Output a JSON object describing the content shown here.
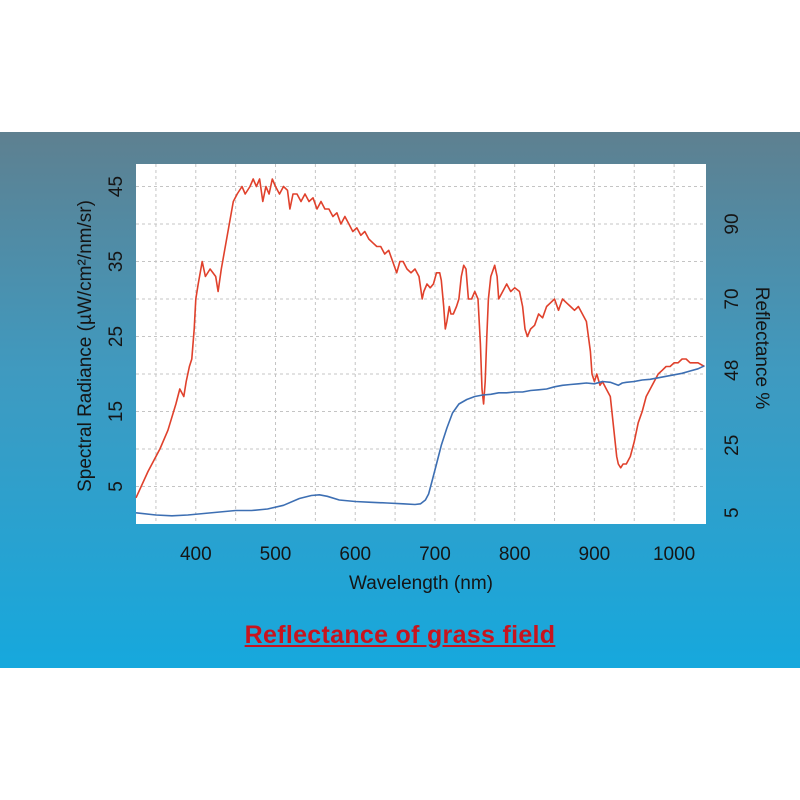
{
  "caption": "Reflectance of grass field",
  "colors": {
    "radiance": "#e0412c",
    "reflectance": "#3d6fb3",
    "caption": "#c8141e"
  },
  "chart_data": {
    "type": "line",
    "xlabel": "Wavelength (nm)",
    "ylabel": "Spectral Radiance (µW/cm²/nm/sr)",
    "y2label": "Reflectance %",
    "xlim": [
      325,
      1040
    ],
    "ylim": [
      0,
      48
    ],
    "x_ticks": [
      400,
      500,
      600,
      700,
      800,
      900,
      1000
    ],
    "y_ticks": [
      5,
      15,
      25,
      35,
      45
    ],
    "y2_ticks": [
      {
        "label": "5",
        "at": 1.5
      },
      {
        "label": "25",
        "at": 10.5
      },
      {
        "label": "48",
        "at": 20.5
      },
      {
        "label": "70",
        "at": 30
      },
      {
        "label": "90",
        "at": 40
      }
    ],
    "grid": true,
    "series": [
      {
        "axis": "left",
        "points": [
          [
            325,
            3.5
          ],
          [
            340,
            7
          ],
          [
            355,
            10
          ],
          [
            365,
            12.5
          ],
          [
            375,
            16
          ],
          [
            380,
            18
          ],
          [
            385,
            17
          ],
          [
            388,
            19
          ],
          [
            392,
            21
          ],
          [
            395,
            22
          ],
          [
            398,
            26
          ],
          [
            400,
            30
          ],
          [
            403,
            32
          ],
          [
            408,
            35
          ],
          [
            412,
            33
          ],
          [
            418,
            34
          ],
          [
            425,
            33
          ],
          [
            428,
            31
          ],
          [
            432,
            34
          ],
          [
            437,
            37
          ],
          [
            442,
            40
          ],
          [
            447,
            43
          ],
          [
            452,
            44
          ],
          [
            458,
            45
          ],
          [
            462,
            44
          ],
          [
            468,
            45
          ],
          [
            472,
            46
          ],
          [
            476,
            45
          ],
          [
            480,
            46
          ],
          [
            484,
            43
          ],
          [
            488,
            45
          ],
          [
            492,
            44
          ],
          [
            496,
            46
          ],
          [
            500,
            45
          ],
          [
            505,
            44
          ],
          [
            510,
            45
          ],
          [
            515,
            44.5
          ],
          [
            518,
            42
          ],
          [
            522,
            44
          ],
          [
            527,
            44
          ],
          [
            532,
            43
          ],
          [
            537,
            44
          ],
          [
            542,
            43
          ],
          [
            547,
            43.5
          ],
          [
            552,
            42
          ],
          [
            557,
            43
          ],
          [
            562,
            42
          ],
          [
            567,
            42
          ],
          [
            572,
            41
          ],
          [
            577,
            41.5
          ],
          [
            582,
            40
          ],
          [
            587,
            41
          ],
          [
            592,
            40
          ],
          [
            597,
            39
          ],
          [
            602,
            39.5
          ],
          [
            607,
            38.5
          ],
          [
            612,
            39
          ],
          [
            617,
            38
          ],
          [
            622,
            37.5
          ],
          [
            627,
            37
          ],
          [
            632,
            37
          ],
          [
            637,
            36
          ],
          [
            642,
            36.5
          ],
          [
            647,
            35
          ],
          [
            652,
            33.5
          ],
          [
            656,
            35
          ],
          [
            660,
            35
          ],
          [
            665,
            34
          ],
          [
            670,
            33.5
          ],
          [
            675,
            34
          ],
          [
            680,
            33
          ],
          [
            684,
            30
          ],
          [
            686,
            31
          ],
          [
            690,
            32
          ],
          [
            694,
            31.5
          ],
          [
            698,
            32
          ],
          [
            702,
            33.5
          ],
          [
            706,
            33.5
          ],
          [
            708,
            32.5
          ],
          [
            711,
            29
          ],
          [
            713,
            26
          ],
          [
            715,
            27
          ],
          [
            718,
            29
          ],
          [
            720,
            28
          ],
          [
            723,
            28
          ],
          [
            727,
            29
          ],
          [
            730,
            30
          ],
          [
            733,
            33
          ],
          [
            736,
            34.5
          ],
          [
            739,
            34
          ],
          [
            742,
            30
          ],
          [
            746,
            30
          ],
          [
            750,
            31
          ],
          [
            754,
            30
          ],
          [
            757,
            24
          ],
          [
            759,
            18
          ],
          [
            761,
            16
          ],
          [
            763,
            19
          ],
          [
            765,
            25
          ],
          [
            767,
            30
          ],
          [
            770,
            33
          ],
          [
            775,
            34.5
          ],
          [
            778,
            33
          ],
          [
            780,
            30
          ],
          [
            785,
            31
          ],
          [
            790,
            32
          ],
          [
            795,
            31
          ],
          [
            800,
            31.5
          ],
          [
            806,
            31
          ],
          [
            810,
            29
          ],
          [
            813,
            26
          ],
          [
            816,
            25
          ],
          [
            820,
            26
          ],
          [
            825,
            26.5
          ],
          [
            830,
            28
          ],
          [
            835,
            27.5
          ],
          [
            840,
            29
          ],
          [
            845,
            29.5
          ],
          [
            850,
            30
          ],
          [
            855,
            28.5
          ],
          [
            860,
            30
          ],
          [
            865,
            29.5
          ],
          [
            870,
            29
          ],
          [
            875,
            28.5
          ],
          [
            880,
            29
          ],
          [
            885,
            28
          ],
          [
            890,
            27
          ],
          [
            895,
            23
          ],
          [
            897,
            20
          ],
          [
            900,
            19
          ],
          [
            903,
            20
          ],
          [
            907,
            18.5
          ],
          [
            910,
            19
          ],
          [
            915,
            18
          ],
          [
            920,
            17
          ],
          [
            925,
            12
          ],
          [
            928,
            9
          ],
          [
            930,
            8
          ],
          [
            933,
            7.5
          ],
          [
            936,
            8
          ],
          [
            940,
            8
          ],
          [
            945,
            9
          ],
          [
            950,
            11
          ],
          [
            955,
            13.5
          ],
          [
            960,
            15
          ],
          [
            965,
            17
          ],
          [
            970,
            18
          ],
          [
            975,
            19
          ],
          [
            980,
            20
          ],
          [
            985,
            20.5
          ],
          [
            990,
            21
          ],
          [
            995,
            21
          ],
          [
            1000,
            21.5
          ],
          [
            1005,
            21.5
          ],
          [
            1010,
            22
          ],
          [
            1015,
            22
          ],
          [
            1020,
            21.5
          ],
          [
            1030,
            21.5
          ],
          [
            1038,
            21
          ]
        ]
      },
      {
        "axis": "left",
        "points": [
          [
            325,
            1.5
          ],
          [
            350,
            1.2
          ],
          [
            370,
            1.1
          ],
          [
            390,
            1.2
          ],
          [
            410,
            1.4
          ],
          [
            430,
            1.6
          ],
          [
            450,
            1.8
          ],
          [
            470,
            1.8
          ],
          [
            490,
            2
          ],
          [
            510,
            2.5
          ],
          [
            530,
            3.4
          ],
          [
            545,
            3.8
          ],
          [
            555,
            3.9
          ],
          [
            565,
            3.7
          ],
          [
            580,
            3.2
          ],
          [
            600,
            3
          ],
          [
            620,
            2.9
          ],
          [
            640,
            2.8
          ],
          [
            660,
            2.7
          ],
          [
            675,
            2.6
          ],
          [
            682,
            2.7
          ],
          [
            688,
            3.2
          ],
          [
            692,
            4
          ],
          [
            697,
            6
          ],
          [
            702,
            8
          ],
          [
            708,
            10.5
          ],
          [
            715,
            12.8
          ],
          [
            722,
            14.8
          ],
          [
            730,
            16
          ],
          [
            740,
            16.6
          ],
          [
            750,
            17
          ],
          [
            760,
            17.2
          ],
          [
            770,
            17.3
          ],
          [
            780,
            17.5
          ],
          [
            790,
            17.5
          ],
          [
            800,
            17.6
          ],
          [
            810,
            17.6
          ],
          [
            820,
            17.8
          ],
          [
            830,
            17.9
          ],
          [
            840,
            18
          ],
          [
            850,
            18.3
          ],
          [
            860,
            18.5
          ],
          [
            870,
            18.6
          ],
          [
            880,
            18.7
          ],
          [
            890,
            18.8
          ],
          [
            900,
            18.7
          ],
          [
            910,
            19
          ],
          [
            920,
            18.9
          ],
          [
            930,
            18.5
          ],
          [
            935,
            18.8
          ],
          [
            940,
            18.9
          ],
          [
            950,
            19
          ],
          [
            960,
            19.2
          ],
          [
            970,
            19.3
          ],
          [
            980,
            19.5
          ],
          [
            990,
            19.7
          ],
          [
            1000,
            19.9
          ],
          [
            1010,
            20.1
          ],
          [
            1020,
            20.4
          ],
          [
            1030,
            20.7
          ],
          [
            1038,
            21.1
          ]
        ]
      }
    ]
  }
}
